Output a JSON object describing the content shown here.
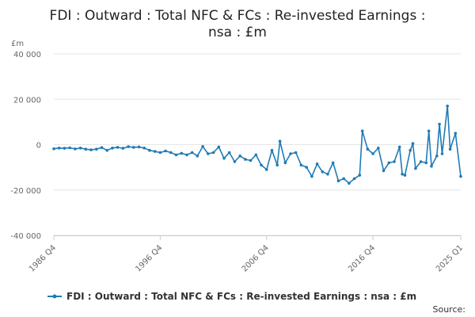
{
  "chart_data": {
    "type": "line",
    "title_lines": [
      "FDI : Outward : Total NFC & FCs : Re-invested Earnings :",
      "nsa : £m"
    ],
    "ylabel": "£m",
    "ylim": [
      -40000,
      40000
    ],
    "yticks": [
      {
        "value": 40000,
        "label": "40 000"
      },
      {
        "value": 20000,
        "label": "20 000"
      },
      {
        "value": 0,
        "label": "0"
      },
      {
        "value": -20000,
        "label": "-20 000"
      },
      {
        "value": -40000,
        "label": "-40 000"
      }
    ],
    "xlim": [
      "1986 Q4",
      "2025 Q1"
    ],
    "xticks": [
      "1986 Q4",
      "1996 Q4",
      "2006 Q4",
      "2016 Q4",
      "2025 Q1"
    ],
    "grid": true,
    "legend_position": "bottom",
    "series": [
      {
        "name": "FDI : Outward : Total NFC & FCs : Re-invested Earnings : nsa : £m",
        "color": "#1f7bb6",
        "points": [
          [
            "1986 Q4",
            -1800
          ],
          [
            "1987 Q2",
            -1500
          ],
          [
            "1987 Q4",
            -1600
          ],
          [
            "1988 Q2",
            -1400
          ],
          [
            "1988 Q4",
            -1900
          ],
          [
            "1989 Q2",
            -1500
          ],
          [
            "1989 Q4",
            -2000
          ],
          [
            "1990 Q2",
            -2300
          ],
          [
            "1990 Q4",
            -2000
          ],
          [
            "1991 Q2",
            -1300
          ],
          [
            "1991 Q4",
            -2500
          ],
          [
            "1992 Q2",
            -1500
          ],
          [
            "1992 Q4",
            -1200
          ],
          [
            "1993 Q2",
            -1600
          ],
          [
            "1993 Q4",
            -900
          ],
          [
            "1994 Q2",
            -1200
          ],
          [
            "1994 Q4",
            -1000
          ],
          [
            "1995 Q2",
            -1500
          ],
          [
            "1995 Q4",
            -2500
          ],
          [
            "1996 Q2",
            -3000
          ],
          [
            "1996 Q4",
            -3500
          ],
          [
            "1997 Q2",
            -2800
          ],
          [
            "1997 Q4",
            -3500
          ],
          [
            "1998 Q2",
            -4500
          ],
          [
            "1998 Q4",
            -3800
          ],
          [
            "1999 Q2",
            -4500
          ],
          [
            "1999 Q4",
            -3500
          ],
          [
            "2000 Q2",
            -5000
          ],
          [
            "2000 Q4",
            -800
          ],
          [
            "2001 Q2",
            -4000
          ],
          [
            "2001 Q4",
            -3500
          ],
          [
            "2002 Q2",
            -1000
          ],
          [
            "2002 Q4",
            -6000
          ],
          [
            "2003 Q2",
            -3500
          ],
          [
            "2003 Q4",
            -7500
          ],
          [
            "2004 Q2",
            -5000
          ],
          [
            "2004 Q4",
            -6500
          ],
          [
            "2005 Q2",
            -7000
          ],
          [
            "2005 Q4",
            -4500
          ],
          [
            "2006 Q2",
            -9000
          ],
          [
            "2006 Q4",
            -11000
          ],
          [
            "2007 Q2",
            -2500
          ],
          [
            "2007 Q4",
            -9000
          ],
          [
            "2008 Q1",
            1500
          ],
          [
            "2008 Q3",
            -8000
          ],
          [
            "2009 Q1",
            -4000
          ],
          [
            "2009 Q3",
            -3500
          ],
          [
            "2010 Q1",
            -9000
          ],
          [
            "2010 Q3",
            -10000
          ],
          [
            "2011 Q1",
            -14000
          ],
          [
            "2011 Q3",
            -8500
          ],
          [
            "2012 Q1",
            -12000
          ],
          [
            "2012 Q3",
            -13000
          ],
          [
            "2013 Q1",
            -8000
          ],
          [
            "2013 Q3",
            -16000
          ],
          [
            "2014 Q1",
            -15000
          ],
          [
            "2014 Q3",
            -17000
          ],
          [
            "2015 Q1",
            -15000
          ],
          [
            "2015 Q3",
            -13500
          ],
          [
            "2015 Q4",
            6000
          ],
          [
            "2016 Q2",
            -2000
          ],
          [
            "2016 Q4",
            -4000
          ],
          [
            "2017 Q2",
            -1500
          ],
          [
            "2017 Q4",
            -11500
          ],
          [
            "2018 Q2",
            -8000
          ],
          [
            "2018 Q4",
            -7500
          ],
          [
            "2019 Q2",
            -1000
          ],
          [
            "2019 Q3",
            -13000
          ],
          [
            "2019 Q4",
            -13500
          ],
          [
            "2020 Q2",
            -2500
          ],
          [
            "2020 Q3",
            500
          ],
          [
            "2020 Q4",
            -10500
          ],
          [
            "2021 Q2",
            -7500
          ],
          [
            "2021 Q4",
            -8000
          ],
          [
            "2022 Q1",
            6000
          ],
          [
            "2022 Q2",
            -9500
          ],
          [
            "2022 Q4",
            -5000
          ],
          [
            "2023 Q1",
            9000
          ],
          [
            "2023 Q2",
            -4000
          ],
          [
            "2023 Q4",
            17000
          ],
          [
            "2024 Q1",
            -2000
          ],
          [
            "2024 Q3",
            5000
          ],
          [
            "2025 Q1",
            -14000
          ]
        ]
      }
    ]
  },
  "legend": {
    "label": "FDI : Outward : Total NFC & FCs : Re-invested Earnings : nsa : £m"
  },
  "source_label": "Source:"
}
